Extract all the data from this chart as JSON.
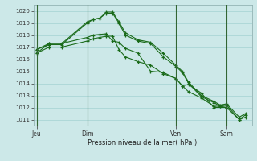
{
  "background_color": "#cce8e8",
  "grid_color": "#99cccc",
  "line_color": "#1a6b1a",
  "marker_color": "#1a6b1a",
  "title": "Pression niveau de la mer( hPa )",
  "ylim": [
    1010.5,
    1020.5
  ],
  "yticks": [
    1011,
    1012,
    1013,
    1014,
    1015,
    1016,
    1017,
    1018,
    1019,
    1020
  ],
  "xtick_labels": [
    "Jeu",
    "Dim",
    "Ven",
    "Sam"
  ],
  "xtick_positions": [
    0,
    8,
    22,
    30
  ],
  "vline_positions": [
    0,
    8,
    22,
    30
  ],
  "series": [
    [
      1016.5,
      1017.3,
      1017.3,
      1017.8,
      1018.0,
      1018.05,
      1018.1,
      1017.5,
      1017.4,
      1016.9,
      1016.5,
      1015.0,
      1014.9,
      1014.4,
      1013.8,
      1013.9,
      1013.2,
      1012.0,
      1012.0
    ],
    [
      1016.8,
      1017.3,
      1017.3,
      1019.1,
      1019.3,
      1019.4,
      1019.9,
      1019.9,
      1019.1,
      1018.2,
      1017.6,
      1017.4,
      1016.5,
      1015.5,
      1015.0,
      1014.1,
      1013.0,
      1012.5,
      1012.2,
      1012.3,
      1011.2,
      1011.5
    ],
    [
      1016.8,
      1017.2,
      1017.2,
      1019.0,
      1019.3,
      1019.4,
      1019.8,
      1019.8,
      1019.0,
      1018.0,
      1017.5,
      1017.3,
      1016.2,
      1015.4,
      1014.9,
      1014.0,
      1012.9,
      1012.4,
      1012.1,
      1012.2,
      1011.0,
      1011.4
    ],
    [
      1016.5,
      1017.0,
      1017.0,
      1017.5,
      1017.7,
      1017.8,
      1017.9,
      1017.9,
      1016.8,
      1016.2,
      1015.8,
      1015.5,
      1014.8,
      1014.4,
      1013.8,
      1013.3,
      1012.8,
      1012.1,
      1012.1,
      1012.0,
      1011.0,
      1011.2
    ]
  ],
  "series_x": [
    [
      0,
      2,
      4,
      8,
      9,
      10,
      11,
      12,
      13,
      14,
      16,
      18,
      20,
      22,
      23,
      24,
      26,
      28,
      30
    ],
    [
      0,
      2,
      4,
      8,
      9,
      10,
      11,
      12,
      13,
      14,
      16,
      18,
      20,
      22,
      23,
      24,
      26,
      28,
      29,
      30,
      32,
      33
    ],
    [
      0,
      2,
      4,
      8,
      9,
      10,
      11,
      12,
      13,
      14,
      16,
      18,
      20,
      22,
      23,
      24,
      26,
      28,
      29,
      30,
      32,
      33
    ],
    [
      0,
      2,
      4,
      8,
      9,
      10,
      11,
      12,
      13,
      14,
      16,
      18,
      20,
      22,
      23,
      24,
      26,
      28,
      29,
      30,
      32,
      33
    ]
  ],
  "xlim": [
    -0.5,
    34
  ]
}
